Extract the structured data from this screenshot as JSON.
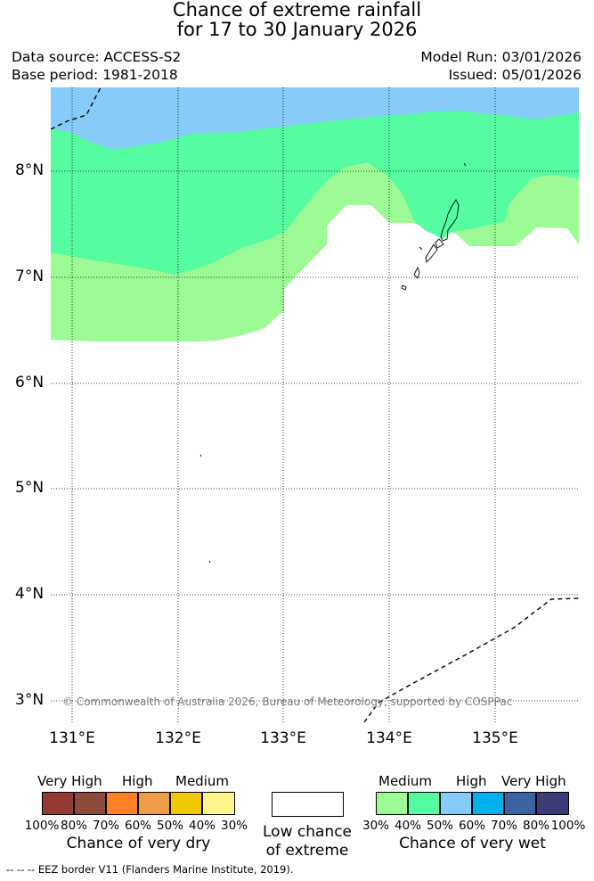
{
  "title": {
    "line1": "Chance of extreme rainfall",
    "line2": "for 17 to 30 January 2026"
  },
  "header": {
    "data_source": "Data source: ACCESS-S2",
    "base_period": "Base period: 1981-2018",
    "model_run": "Model Run: 03/01/2026",
    "issued": "Issued: 05/01/2026"
  },
  "map": {
    "lat_labels": [
      "8°N",
      "7°N",
      "6°N",
      "5°N",
      "4°N",
      "3°N"
    ],
    "lon_labels": [
      "131°E",
      "132°E",
      "133°E",
      "134°E",
      "135°E"
    ],
    "copyright": "© Commonwealth of Australia 2026, Bureau of Meteorology, supported by COSPPac",
    "colors": {
      "wet_30_40": "#9cfb95",
      "wet_40_50": "#55fca0",
      "wet_50_60": "#87cbfa"
    }
  },
  "legend_dry": {
    "categories": [
      "Very High",
      "High",
      "Medium"
    ],
    "percents": [
      "100%",
      "80%",
      "70%",
      "60%",
      "50%",
      "40%",
      "30%"
    ],
    "colors": [
      "#923c34",
      "#8c4c3c",
      "#fe7f28",
      "#ed9c48",
      "#f0c800",
      "#fef68c"
    ],
    "title": "Chance of very dry"
  },
  "legend_low": {
    "line1": "Low chance",
    "line2": "of extreme"
  },
  "legend_wet": {
    "categories": [
      "Medium",
      "High",
      "Very High"
    ],
    "percents": [
      "30%",
      "40%",
      "50%",
      "60%",
      "70%",
      "80%",
      "100%"
    ],
    "colors": [
      "#9cfb95",
      "#55fca0",
      "#87cbfa",
      "#00b0ec",
      "#3a64a0",
      "#3c3c78"
    ],
    "title": "Chance of very wet"
  },
  "footnote": "--  --  -- EEZ border V11 (Flanders Marine Institute, 2019)."
}
